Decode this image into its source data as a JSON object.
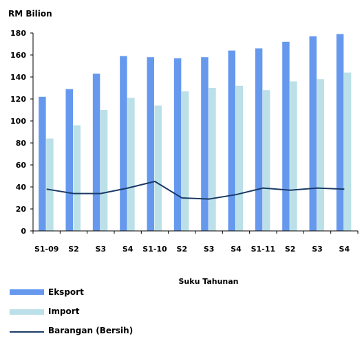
{
  "chart_data": {
    "type": "bar",
    "ylabel": "RM Bilion",
    "xlabel": "Suku Tahunan",
    "ylim": [
      0,
      180
    ],
    "yticks": [
      0,
      20,
      40,
      60,
      80,
      100,
      120,
      140,
      160,
      180
    ],
    "categories": [
      "S1-09",
      "S2",
      "S3",
      "S4",
      "S1-10",
      "S2",
      "S3",
      "S4",
      "S1-11",
      "S2",
      "S3",
      "S4"
    ],
    "grid": false,
    "legend_position": "bottom-left",
    "series": [
      {
        "name": "Eksport",
        "type": "bar",
        "color": "#6699ee",
        "values": [
          122,
          129,
          143,
          159,
          158,
          157,
          158,
          164,
          166,
          172,
          177,
          179
        ]
      },
      {
        "name": "Import",
        "type": "bar",
        "color": "#bbe0e8",
        "values": [
          84,
          96,
          110,
          121,
          114,
          127,
          130,
          132,
          128,
          136,
          138,
          144
        ]
      },
      {
        "name": "Barangan (Bersih)",
        "type": "line",
        "color": "#1a3a66",
        "values": [
          38,
          34,
          34,
          39,
          45,
          30,
          29,
          33,
          39,
          37,
          39,
          38
        ]
      }
    ]
  }
}
